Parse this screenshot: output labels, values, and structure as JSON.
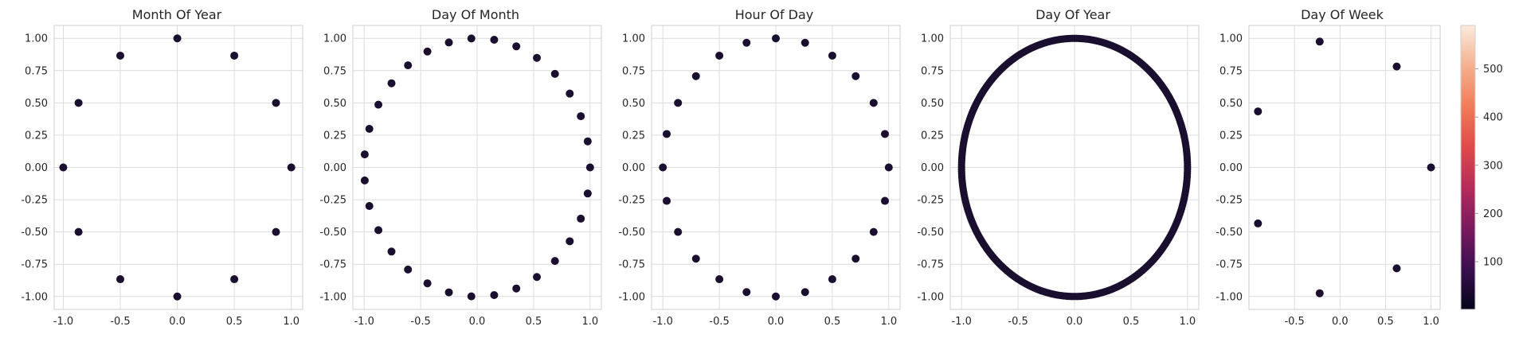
{
  "colors": {
    "point": "#1a0f2e",
    "grid": "#dcdcdc",
    "frame": "#cfcfcf",
    "colormap_stops": [
      "#03051a",
      "#3b0f4f",
      "#7a1a5e",
      "#b52b5a",
      "#e04a4a",
      "#f17c58",
      "#f5b08f",
      "#faebdd"
    ]
  },
  "colorbar": {
    "ticks": [
      "100",
      "200",
      "300",
      "400",
      "500"
    ],
    "values": [
      100,
      200,
      300,
      400,
      500
    ],
    "range": [
      1,
      590
    ]
  },
  "chart_data": [
    {
      "type": "scatter",
      "title": "Month Of Year",
      "xlim": [
        -1.08,
        1.1
      ],
      "ylim": [
        -1.1,
        1.1
      ],
      "xticks": [
        "-1.0",
        "-0.5",
        "0.0",
        "0.5",
        "1.0"
      ],
      "xtick_values": [
        -1,
        -0.5,
        0,
        0.5,
        1
      ],
      "yticks": [
        "1.00",
        "0.75",
        "0.50",
        "0.25",
        "0.00",
        "-0.25",
        "-0.50",
        "-0.75",
        "-1.00"
      ],
      "ytick_values": [
        1,
        0.75,
        0.5,
        0.25,
        0,
        -0.25,
        -0.5,
        -0.75,
        -1
      ],
      "grid": true,
      "points": [
        [
          0,
          1
        ],
        [
          0.5,
          0.866
        ],
        [
          0.866,
          0.5
        ],
        [
          1,
          0
        ],
        [
          0.866,
          -0.5
        ],
        [
          0.5,
          -0.866
        ],
        [
          0,
          -1
        ],
        [
          -0.5,
          -0.866
        ],
        [
          -0.866,
          -0.5
        ],
        [
          -1,
          0
        ],
        [
          -0.866,
          0.5
        ],
        [
          -0.5,
          0.866
        ]
      ]
    },
    {
      "type": "scatter",
      "title": "Day Of Month",
      "xlim": [
        -1.1,
        1.1
      ],
      "ylim": [
        -1.1,
        1.1
      ],
      "xticks": [
        "-1.0",
        "-0.5",
        "0.0",
        "0.5",
        "1.0"
      ],
      "xtick_values": [
        -1,
        -0.5,
        0,
        0.5,
        1
      ],
      "yticks": [
        "1.00",
        "0.75",
        "0.50",
        "0.25",
        "0.00",
        "-0.25",
        "-0.50",
        "-0.75",
        "-1.00"
      ],
      "ytick_values": [
        1,
        0.75,
        0.5,
        0.25,
        0,
        -0.25,
        -0.5,
        -0.75,
        -1
      ],
      "grid": true,
      "points": [
        [
          -0.051,
          0.999
        ],
        [
          0.151,
          0.989
        ],
        [
          0.347,
          0.938
        ],
        [
          0.529,
          0.849
        ],
        [
          0.689,
          0.725
        ],
        [
          0.82,
          0.572
        ],
        [
          0.918,
          0.397
        ],
        [
          0.979,
          0.202
        ],
        [
          1.0,
          0.0
        ],
        [
          0.979,
          -0.202
        ],
        [
          0.918,
          -0.397
        ],
        [
          0.82,
          -0.572
        ],
        [
          0.689,
          -0.725
        ],
        [
          0.529,
          -0.849
        ],
        [
          0.347,
          -0.938
        ],
        [
          0.151,
          -0.989
        ],
        [
          -0.051,
          -0.999
        ],
        [
          -0.25,
          -0.968
        ],
        [
          -0.44,
          -0.898
        ],
        [
          -0.612,
          -0.791
        ],
        [
          -0.758,
          -0.652
        ],
        [
          -0.874,
          -0.486
        ],
        [
          -0.954,
          -0.299
        ],
        [
          -0.995,
          -0.101
        ],
        [
          -0.995,
          0.101
        ],
        [
          -0.954,
          0.299
        ],
        [
          -0.874,
          0.486
        ],
        [
          -0.758,
          0.652
        ],
        [
          -0.612,
          0.791
        ],
        [
          -0.44,
          0.898
        ],
        [
          -0.25,
          0.968
        ]
      ]
    },
    {
      "type": "scatter",
      "title": "Hour Of Day",
      "xlim": [
        -1.1,
        1.1
      ],
      "ylim": [
        -1.1,
        1.1
      ],
      "xticks": [
        "-1.0",
        "-0.5",
        "0.0",
        "0.5",
        "1.0"
      ],
      "xtick_values": [
        -1,
        -0.5,
        0,
        0.5,
        1
      ],
      "yticks": [
        "1.00",
        "0.75",
        "0.50",
        "0.25",
        "0.00",
        "-0.25",
        "-0.50",
        "-0.75",
        "-1.00"
      ],
      "ytick_values": [
        1,
        0.75,
        0.5,
        0.25,
        0,
        -0.25,
        -0.5,
        -0.75,
        -1
      ],
      "grid": true,
      "points": [
        [
          0,
          1
        ],
        [
          0.259,
          0.966
        ],
        [
          0.5,
          0.866
        ],
        [
          0.707,
          0.707
        ],
        [
          0.866,
          0.5
        ],
        [
          0.966,
          0.259
        ],
        [
          1,
          0
        ],
        [
          0.966,
          -0.259
        ],
        [
          0.866,
          -0.5
        ],
        [
          0.707,
          -0.707
        ],
        [
          0.5,
          -0.866
        ],
        [
          0.259,
          -0.966
        ],
        [
          0,
          -1
        ],
        [
          -0.259,
          -0.966
        ],
        [
          -0.5,
          -0.866
        ],
        [
          -0.707,
          -0.707
        ],
        [
          -0.866,
          -0.5
        ],
        [
          -0.966,
          -0.259
        ],
        [
          -1,
          0
        ],
        [
          -0.966,
          0.259
        ],
        [
          -0.866,
          0.5
        ],
        [
          -0.707,
          0.707
        ],
        [
          -0.5,
          0.866
        ],
        [
          -0.259,
          0.966
        ]
      ]
    },
    {
      "type": "scatter",
      "title": "Day Of Year",
      "xlim": [
        -1.1,
        1.1
      ],
      "ylim": [
        -1.1,
        1.1
      ],
      "xticks": [
        "-1.0",
        "-0.5",
        "0.0",
        "0.5",
        "1.0"
      ],
      "xtick_values": [
        -1,
        -0.5,
        0,
        0.5,
        1
      ],
      "yticks": [
        "1.00",
        "0.75",
        "0.50",
        "0.25",
        "0.00",
        "-0.25",
        "-0.50",
        "-0.75",
        "-1.00"
      ],
      "ytick_values": [
        1,
        0.75,
        0.5,
        0.25,
        0,
        -0.25,
        -0.5,
        -0.75,
        -1
      ],
      "grid": true,
      "points_note": "dense ring of 365 points on the unit circle",
      "n_points": 365
    },
    {
      "type": "scatter",
      "title": "Day Of Week",
      "xlim": [
        -1.0,
        1.1
      ],
      "ylim": [
        -1.1,
        1.1
      ],
      "xticks": [
        "-0.5",
        "0.0",
        "0.5",
        "1.0"
      ],
      "xtick_values": [
        -0.5,
        0,
        0.5,
        1
      ],
      "yticks": [
        "1.00",
        "0.75",
        "0.50",
        "0.25",
        "0.00",
        "-0.25",
        "-0.50",
        "-0.75",
        "-1.00"
      ],
      "ytick_values": [
        1,
        0.75,
        0.5,
        0.25,
        0,
        -0.25,
        -0.5,
        -0.75,
        -1
      ],
      "grid": true,
      "points": [
        [
          1,
          0
        ],
        [
          0.623,
          0.782
        ],
        [
          -0.223,
          0.975
        ],
        [
          -0.901,
          0.434
        ],
        [
          -0.901,
          -0.434
        ],
        [
          -0.223,
          -0.975
        ],
        [
          0.623,
          -0.782
        ]
      ]
    }
  ]
}
